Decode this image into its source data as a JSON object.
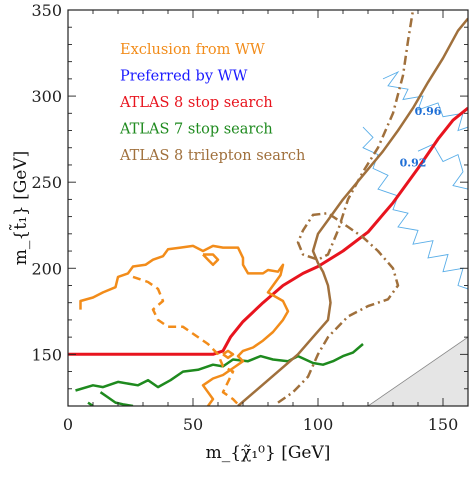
{
  "chart_data": {
    "type": "line",
    "title": "",
    "xlabel": "m_{χ̃₁⁰} [GeV]",
    "ylabel": "m_{t̃₁} [GeV]",
    "xlim": [
      0,
      160
    ],
    "ylim": [
      120,
      350
    ],
    "x_ticks": [
      "0",
      "50",
      "100",
      "150"
    ],
    "y_ticks": [
      "150",
      "200",
      "250",
      "300",
      "350"
    ],
    "x_tick_values": [
      0,
      50,
      100,
      150
    ],
    "y_tick_values": [
      150,
      200,
      250,
      300,
      350
    ],
    "legend": {
      "placement": "top-left",
      "entries": [
        {
          "label": "Exclusion from WW",
          "color": "#f28c1a"
        },
        {
          "label": "Preferred by WW",
          "color": "#1a1aff"
        },
        {
          "label": "ATLAS 8 stop search",
          "color": "#e8141e"
        },
        {
          "label": "ATLAS 7 stop search",
          "color": "#1e8a1e"
        },
        {
          "label": "ATLAS 8 trilepton search",
          "color": "#a0703c"
        }
      ]
    },
    "contour_labels": [
      {
        "text": "0.96",
        "x": 144,
        "y": 289
      },
      {
        "text": "0.92",
        "x": 138,
        "y": 259
      }
    ],
    "forbidden_region": {
      "color": "#e5e5e5",
      "points": [
        [
          120,
          120
        ],
        [
          160,
          120
        ],
        [
          160,
          160
        ]
      ]
    },
    "series": [
      {
        "name": "ATLAS 8 stop search",
        "color": "#e8141e",
        "style": "solid",
        "width": 3,
        "points": [
          [
            0,
            150
          ],
          [
            58,
            150
          ],
          [
            62,
            152
          ],
          [
            65,
            160
          ],
          [
            70,
            169
          ],
          [
            78,
            180
          ],
          [
            86,
            190
          ],
          [
            94,
            197
          ],
          [
            100,
            201
          ],
          [
            110,
            210
          ],
          [
            120,
            221
          ],
          [
            130,
            238
          ],
          [
            140,
            258
          ],
          [
            148,
            275
          ],
          [
            154,
            286
          ],
          [
            160,
            293
          ]
        ]
      },
      {
        "name": "ATLAS 7 stop search",
        "color": "#1e8a1e",
        "style": "solid",
        "width": 2.5,
        "points": [
          [
            3,
            129
          ],
          [
            10,
            132
          ],
          [
            14,
            131
          ],
          [
            20,
            134
          ],
          [
            28,
            132
          ],
          [
            32,
            135
          ],
          [
            36,
            131
          ],
          [
            41,
            135
          ],
          [
            46,
            140
          ],
          [
            52,
            141
          ],
          [
            58,
            144
          ],
          [
            62,
            143
          ],
          [
            66,
            147
          ],
          [
            72,
            146
          ],
          [
            77,
            149
          ],
          [
            82,
            147
          ],
          [
            88,
            146
          ],
          [
            92,
            149
          ],
          [
            98,
            145
          ],
          [
            102,
            144
          ],
          [
            106,
            146
          ],
          [
            110,
            149
          ],
          [
            114,
            151
          ],
          [
            118,
            156
          ]
        ]
      },
      {
        "name": "ATLAS 7 stop search",
        "color": "#1e8a1e",
        "style": "solid",
        "width": 2.5,
        "points": [
          [
            8,
            122
          ],
          [
            10,
            120
          ]
        ]
      },
      {
        "name": "ATLAS 7 stop search",
        "color": "#1e8a1e",
        "style": "solid",
        "width": 2.5,
        "points": [
          [
            13,
            128
          ],
          [
            16,
            125
          ],
          [
            19,
            122
          ],
          [
            22,
            121
          ],
          [
            26,
            120
          ]
        ]
      },
      {
        "name": "Exclusion from WW",
        "color": "#f28c1a",
        "style": "solid",
        "width": 2.5,
        "points": [
          [
            5,
            176
          ],
          [
            5,
            181
          ],
          [
            10,
            183
          ],
          [
            14,
            186
          ],
          [
            19,
            189
          ],
          [
            20,
            195
          ],
          [
            24,
            197
          ],
          [
            26,
            201
          ],
          [
            31,
            202
          ],
          [
            34,
            205
          ],
          [
            38,
            207
          ],
          [
            40,
            211
          ],
          [
            45,
            212
          ],
          [
            50,
            213
          ],
          [
            54,
            210
          ],
          [
            58,
            213
          ],
          [
            62,
            212
          ],
          [
            68,
            212
          ],
          [
            70,
            206
          ],
          [
            70,
            202
          ],
          [
            72,
            197
          ],
          [
            78,
            197
          ],
          [
            80,
            199
          ],
          [
            84,
            198
          ],
          [
            86,
            202
          ],
          [
            85,
            196
          ],
          [
            82,
            190
          ],
          [
            80,
            186
          ],
          [
            86,
            181
          ],
          [
            88,
            175
          ],
          [
            86,
            170
          ],
          [
            82,
            163
          ],
          [
            78,
            158
          ],
          [
            74,
            154
          ],
          [
            70,
            152
          ],
          [
            68,
            149
          ],
          [
            70,
            146
          ],
          [
            66,
            142
          ],
          [
            62,
            138
          ],
          [
            58,
            136
          ],
          [
            54,
            132
          ],
          [
            56,
            128
          ],
          [
            58,
            124
          ],
          [
            56,
            120
          ]
        ]
      },
      {
        "name": "Exclusion from WW",
        "color": "#f28c1a",
        "style": "solid",
        "width": 2.5,
        "points": [
          [
            54,
            208
          ],
          [
            56,
            205
          ],
          [
            58,
            202
          ],
          [
            60,
            205
          ],
          [
            58,
            208
          ],
          [
            54,
            208
          ]
        ]
      },
      {
        "name": "Exclusion from WW",
        "color": "#f28c1a",
        "style": "dashed",
        "width": 2.5,
        "points": [
          [
            26,
            195
          ],
          [
            32,
            192
          ],
          [
            36,
            188
          ],
          [
            38,
            181
          ],
          [
            34,
            176
          ],
          [
            36,
            170
          ],
          [
            40,
            166
          ],
          [
            46,
            166
          ],
          [
            52,
            160
          ],
          [
            56,
            156
          ],
          [
            60,
            150
          ],
          [
            62,
            143
          ],
          [
            66,
            140
          ],
          [
            64,
            134
          ],
          [
            62,
            128
          ],
          [
            66,
            124
          ],
          [
            68,
            121
          ]
        ]
      },
      {
        "name": "Exclusion from WW",
        "color": "#f28c1a",
        "style": "solid",
        "width": 2.5,
        "points": [
          [
            62,
            150
          ],
          [
            64,
            148
          ],
          [
            66,
            150
          ],
          [
            64,
            152
          ],
          [
            62,
            150
          ]
        ]
      },
      {
        "name": "ATLAS 8 trilepton search",
        "color": "#a0703c",
        "style": "solid",
        "width": 2.5,
        "points": [
          [
            68,
            120
          ],
          [
            76,
            130
          ],
          [
            84,
            140
          ],
          [
            92,
            150
          ],
          [
            98,
            160
          ],
          [
            104,
            170
          ],
          [
            105,
            180
          ],
          [
            104,
            190
          ],
          [
            102,
            198
          ],
          [
            100,
            203
          ],
          [
            98,
            210
          ],
          [
            100,
            220
          ],
          [
            104,
            228
          ],
          [
            110,
            240
          ],
          [
            118,
            254
          ],
          [
            126,
            268
          ],
          [
            132,
            280
          ],
          [
            138,
            293
          ],
          [
            144,
            308
          ],
          [
            150,
            322
          ],
          [
            156,
            338
          ],
          [
            160,
            345
          ]
        ]
      },
      {
        "name": "ATLAS 8 trilepton search",
        "color": "#a0703c",
        "style": "dashdot",
        "width": 2.5,
        "points": [
          [
            84,
            122
          ],
          [
            90,
            128
          ],
          [
            96,
            137
          ],
          [
            100,
            150
          ],
          [
            104,
            160
          ],
          [
            112,
            172
          ],
          [
            120,
            178
          ],
          [
            128,
            182
          ],
          [
            132,
            190
          ],
          [
            130,
            200
          ],
          [
            124,
            210
          ],
          [
            118,
            218
          ],
          [
            112,
            224
          ],
          [
            104,
            232
          ],
          [
            98,
            231
          ],
          [
            94,
            222
          ],
          [
            92,
            215
          ],
          [
            94,
            208
          ],
          [
            100,
            205
          ],
          [
            104,
            208
          ],
          [
            108,
            222
          ],
          [
            112,
            240
          ],
          [
            118,
            256
          ],
          [
            124,
            270
          ],
          [
            130,
            290
          ],
          [
            134,
            312
          ],
          [
            136,
            332
          ],
          [
            138,
            350
          ]
        ]
      }
    ],
    "preferred_region_contours": [
      {
        "label": "0.96",
        "color": "#5aaee8",
        "points": [
          [
            126,
            310
          ],
          [
            132,
            314
          ],
          [
            128,
            306
          ],
          [
            136,
            304
          ],
          [
            134,
            298
          ],
          [
            142,
            300
          ],
          [
            140,
            292
          ],
          [
            148,
            296
          ],
          [
            150,
            288
          ],
          [
            158,
            290
          ],
          [
            156,
            280
          ],
          [
            160,
            282
          ]
        ]
      },
      {
        "label": "0.92",
        "color": "#5aaee8",
        "points": [
          [
            118,
            282
          ],
          [
            122,
            276
          ],
          [
            118,
            270
          ],
          [
            124,
            266
          ],
          [
            122,
            258
          ],
          [
            128,
            254
          ],
          [
            124,
            246
          ],
          [
            132,
            242
          ],
          [
            130,
            234
          ],
          [
            136,
            232
          ],
          [
            132,
            224
          ],
          [
            140,
            222
          ],
          [
            138,
            214
          ],
          [
            146,
            216
          ],
          [
            144,
            206
          ],
          [
            152,
            208
          ],
          [
            150,
            198
          ],
          [
            158,
            200
          ],
          [
            156,
            190
          ],
          [
            160,
            188
          ]
        ]
      },
      {
        "label": "0.92",
        "color": "#5aaee8",
        "points": [
          [
            140,
            268
          ],
          [
            146,
            272
          ],
          [
            150,
            262
          ],
          [
            156,
            266
          ],
          [
            158,
            256
          ],
          [
            154,
            248
          ],
          [
            160,
            246
          ]
        ]
      }
    ]
  }
}
